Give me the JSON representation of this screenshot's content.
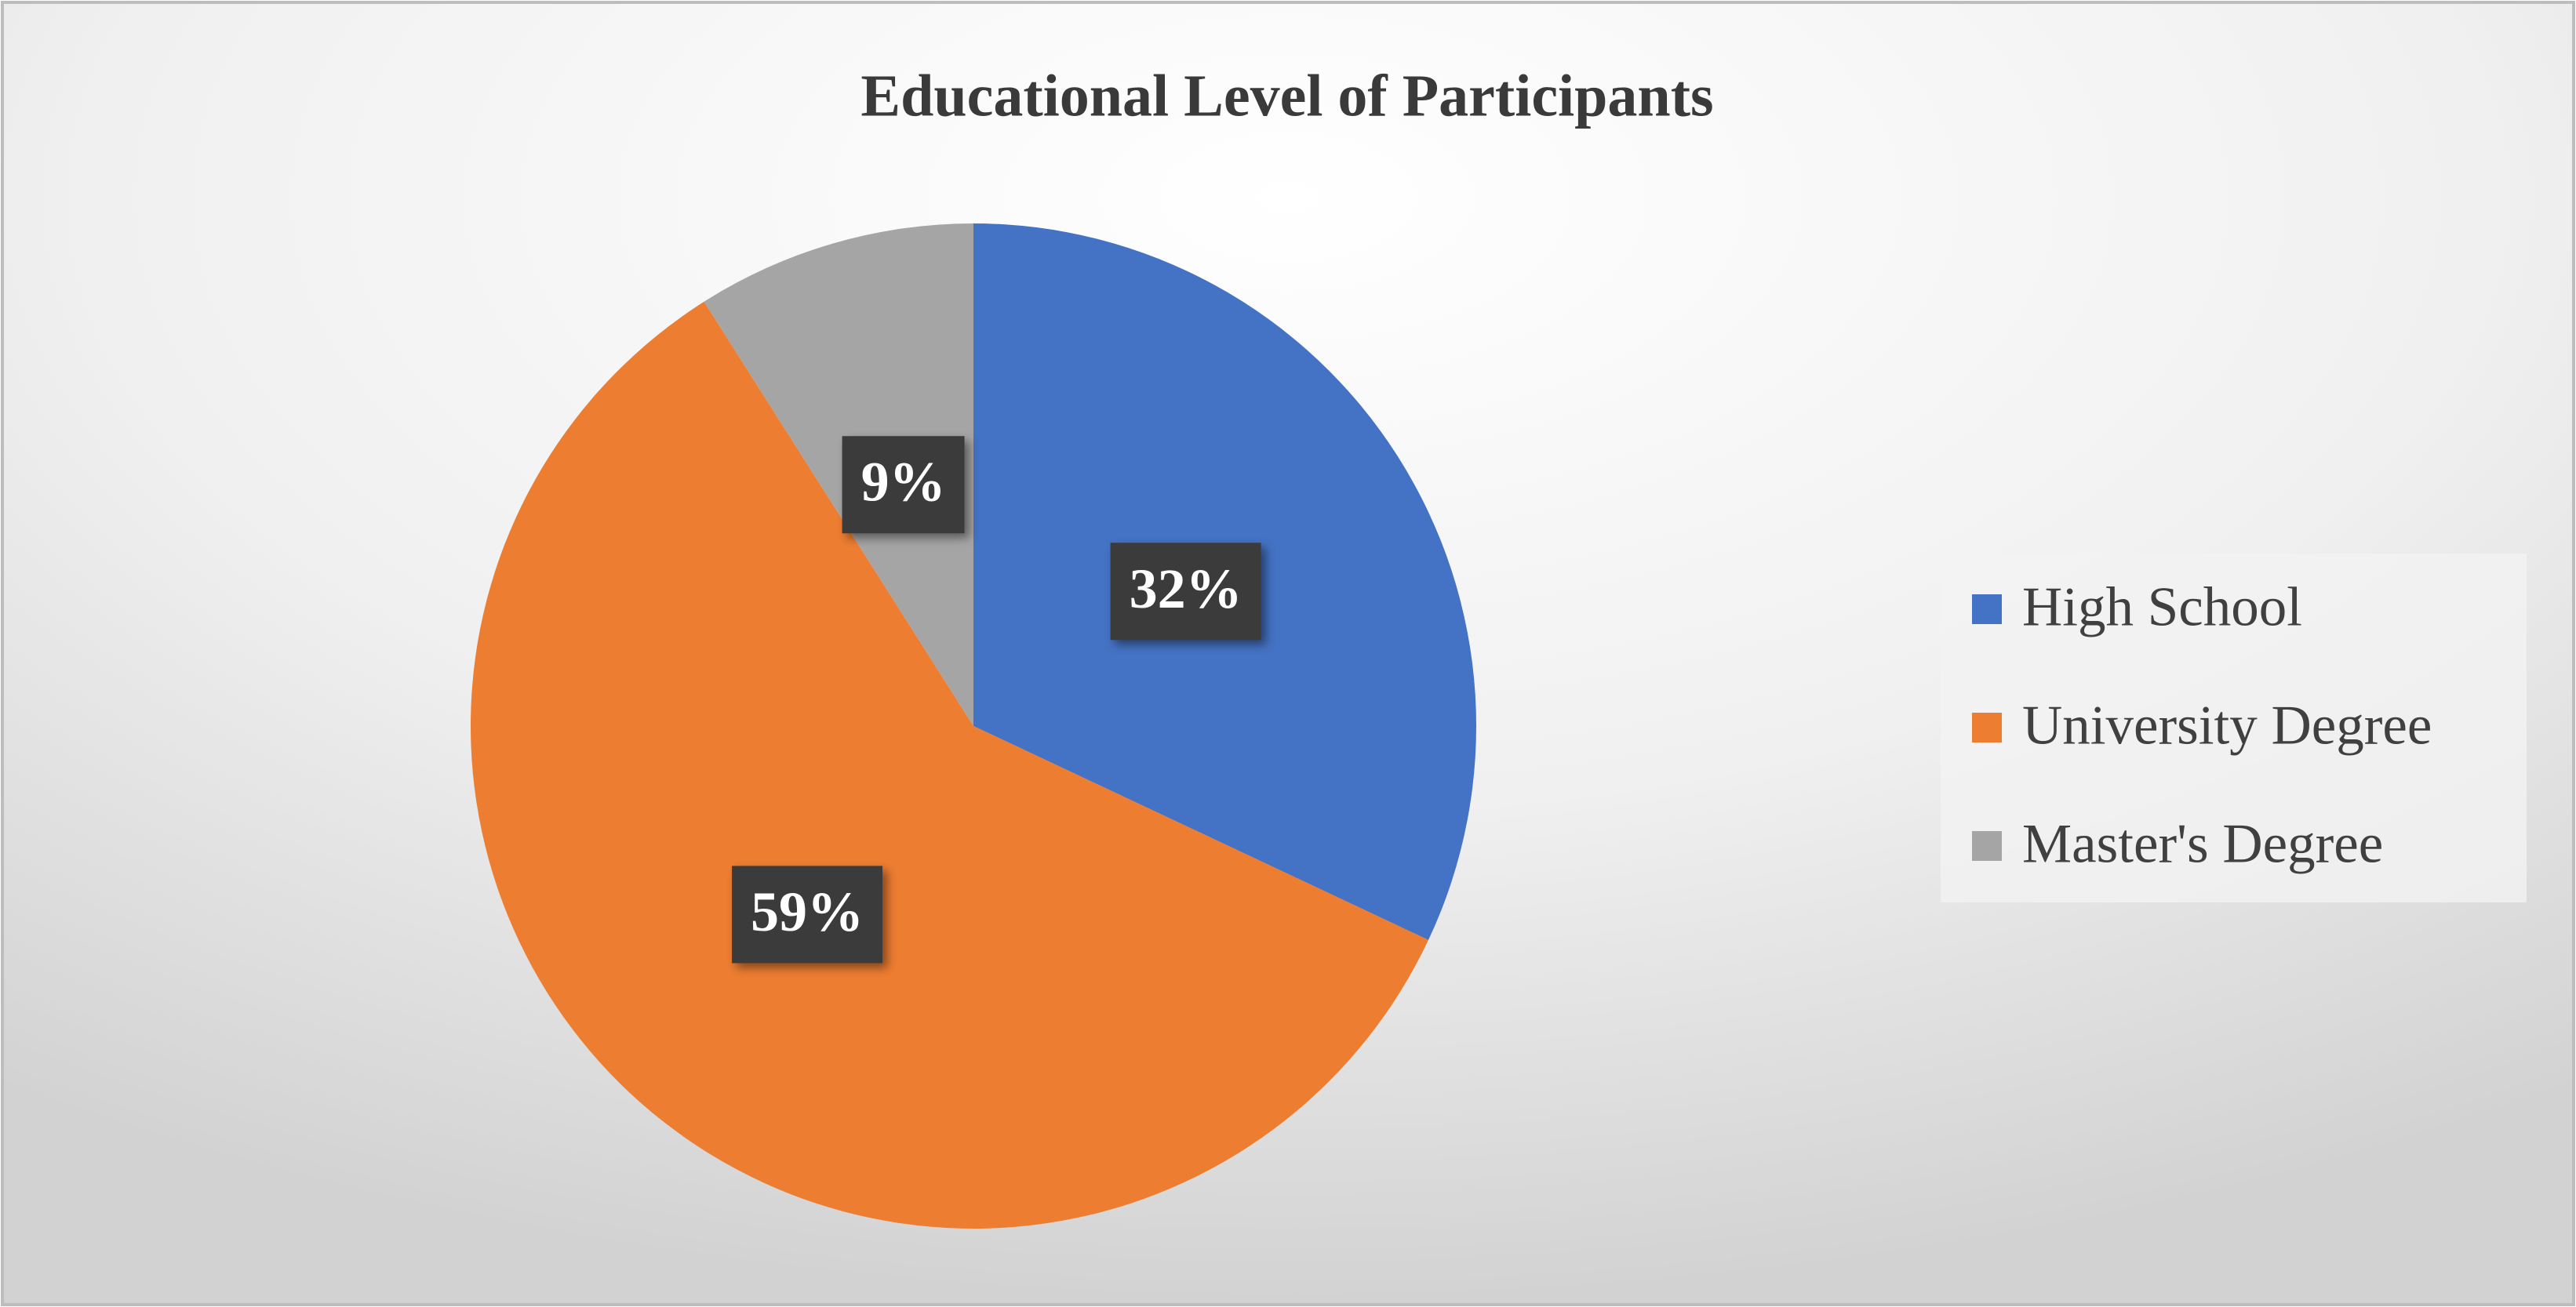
{
  "chart_data": {
    "type": "pie",
    "title": "Educational Level of Participants",
    "categories": [
      "High School",
      "University Degree",
      "Master's Degree"
    ],
    "values": [
      32,
      59,
      9
    ],
    "value_labels": [
      "32%",
      "59%",
      "9%"
    ],
    "colors": [
      "#4472c4",
      "#ed7d31",
      "#a5a5a5"
    ],
    "legend": "right"
  }
}
